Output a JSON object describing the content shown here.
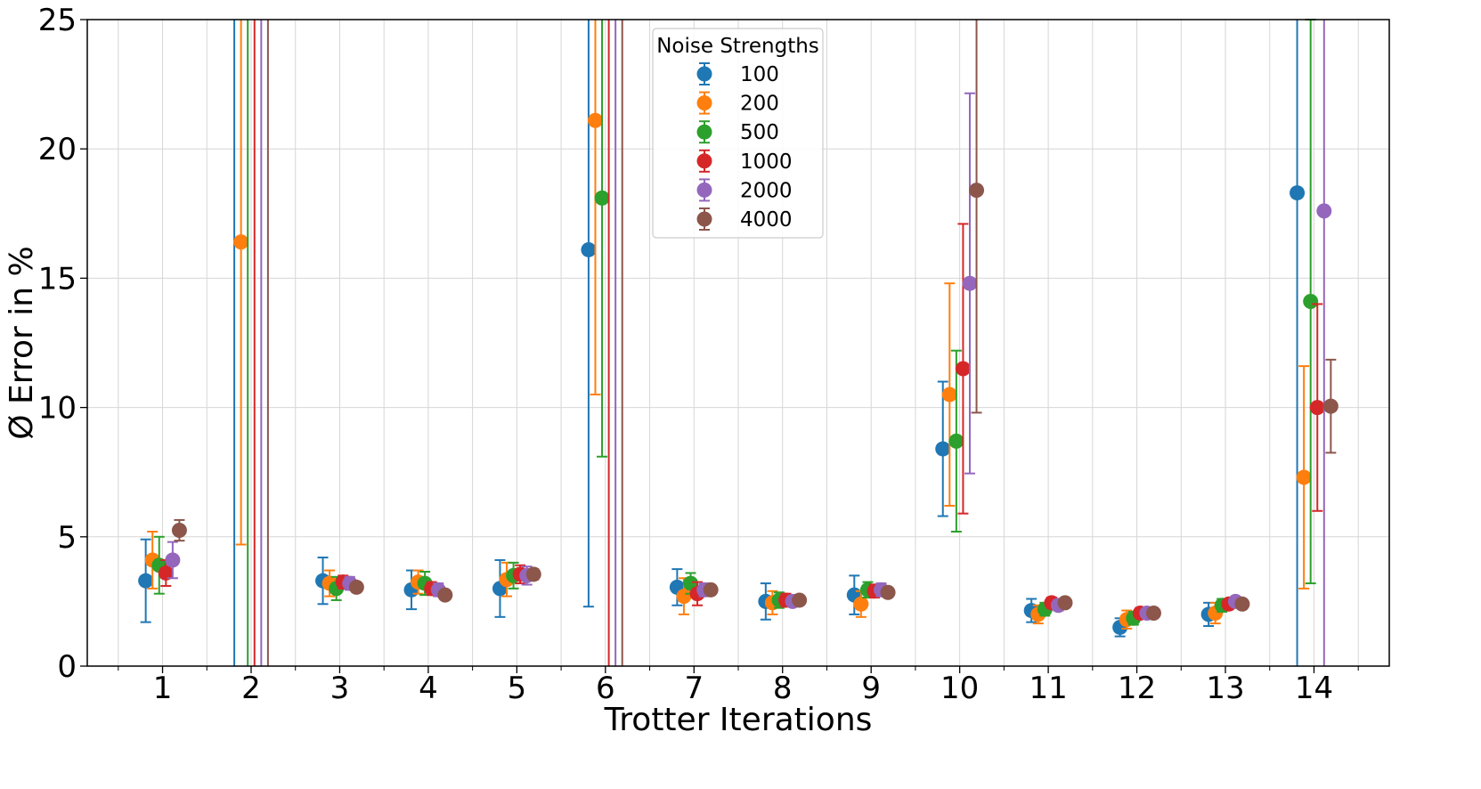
{
  "chart_data": {
    "type": "scatter",
    "xlabel": "Trotter Iterations",
    "ylabel": "Ø Error in %",
    "x": [
      1,
      2,
      3,
      4,
      5,
      6,
      7,
      8,
      9,
      10,
      11,
      12,
      13,
      14
    ],
    "xticks": [
      "1",
      "2",
      "3",
      "4",
      "5",
      "6",
      "7",
      "8",
      "9",
      "10",
      "11",
      "12",
      "13",
      "14"
    ],
    "yticks": [
      "0",
      "5",
      "10",
      "15",
      "20",
      "25"
    ],
    "ylim": [
      0,
      25
    ],
    "xlim": [
      0.15,
      14.85
    ],
    "grid": true,
    "legend": {
      "title": "Noise Strengths",
      "placement": "top-center"
    },
    "series": [
      {
        "name": "100",
        "color": "#1f77b4",
        "values": [
          3.3,
          null,
          3.3,
          2.95,
          3.0,
          16.1,
          3.05,
          2.5,
          2.75,
          8.4,
          2.15,
          1.5,
          2.0,
          18.3
        ],
        "errors": [
          1.6,
          30,
          0.9,
          0.75,
          1.1,
          13.8,
          0.7,
          0.7,
          0.75,
          2.6,
          0.45,
          0.35,
          0.45,
          30
        ]
      },
      {
        "name": "200",
        "color": "#ff7f0e",
        "values": [
          4.1,
          16.4,
          3.2,
          3.25,
          3.35,
          21.1,
          2.7,
          2.45,
          2.4,
          10.5,
          2.0,
          1.8,
          2.05,
          7.3
        ],
        "errors": [
          1.1,
          11.7,
          0.5,
          0.45,
          0.65,
          10.6,
          0.7,
          0.45,
          0.5,
          4.3,
          0.35,
          0.35,
          0.4,
          4.3
        ]
      },
      {
        "name": "500",
        "color": "#2ca02c",
        "values": [
          3.9,
          null,
          3.0,
          3.2,
          3.5,
          18.1,
          3.2,
          2.55,
          2.95,
          8.7,
          2.2,
          1.85,
          2.35,
          14.1
        ],
        "errors": [
          1.1,
          30,
          0.45,
          0.45,
          0.5,
          10.0,
          0.4,
          0.3,
          0.3,
          3.5,
          0.25,
          0.25,
          0.25,
          10.9
        ]
      },
      {
        "name": "1000",
        "color": "#d62728",
        "values": [
          3.6,
          null,
          3.25,
          3.0,
          3.55,
          null,
          2.8,
          2.55,
          2.9,
          11.5,
          2.45,
          2.05,
          2.4,
          10.0
        ],
        "errors": [
          0.5,
          30,
          0.25,
          0.25,
          0.35,
          30,
          0.45,
          0.25,
          0.25,
          5.6,
          0.2,
          0.2,
          0.2,
          4.0
        ]
      },
      {
        "name": "2000",
        "color": "#9467bd",
        "values": [
          4.1,
          null,
          3.2,
          2.95,
          3.5,
          null,
          2.95,
          2.5,
          2.95,
          14.8,
          2.35,
          2.05,
          2.5,
          17.6
        ],
        "errors": [
          0.7,
          30,
          0.25,
          0.25,
          0.35,
          30,
          0.25,
          0.2,
          0.25,
          7.35,
          0.2,
          0.15,
          0.15,
          30
        ]
      },
      {
        "name": "4000",
        "color": "#8c564b",
        "values": [
          5.25,
          null,
          3.05,
          2.75,
          3.55,
          null,
          2.95,
          2.55,
          2.85,
          18.4,
          2.45,
          2.05,
          2.4,
          10.05
        ],
        "errors": [
          0.4,
          30,
          0.15,
          0.15,
          0.2,
          30,
          0.15,
          0.15,
          0.15,
          8.6,
          0.15,
          0.1,
          0.1,
          1.8
        ]
      }
    ]
  }
}
